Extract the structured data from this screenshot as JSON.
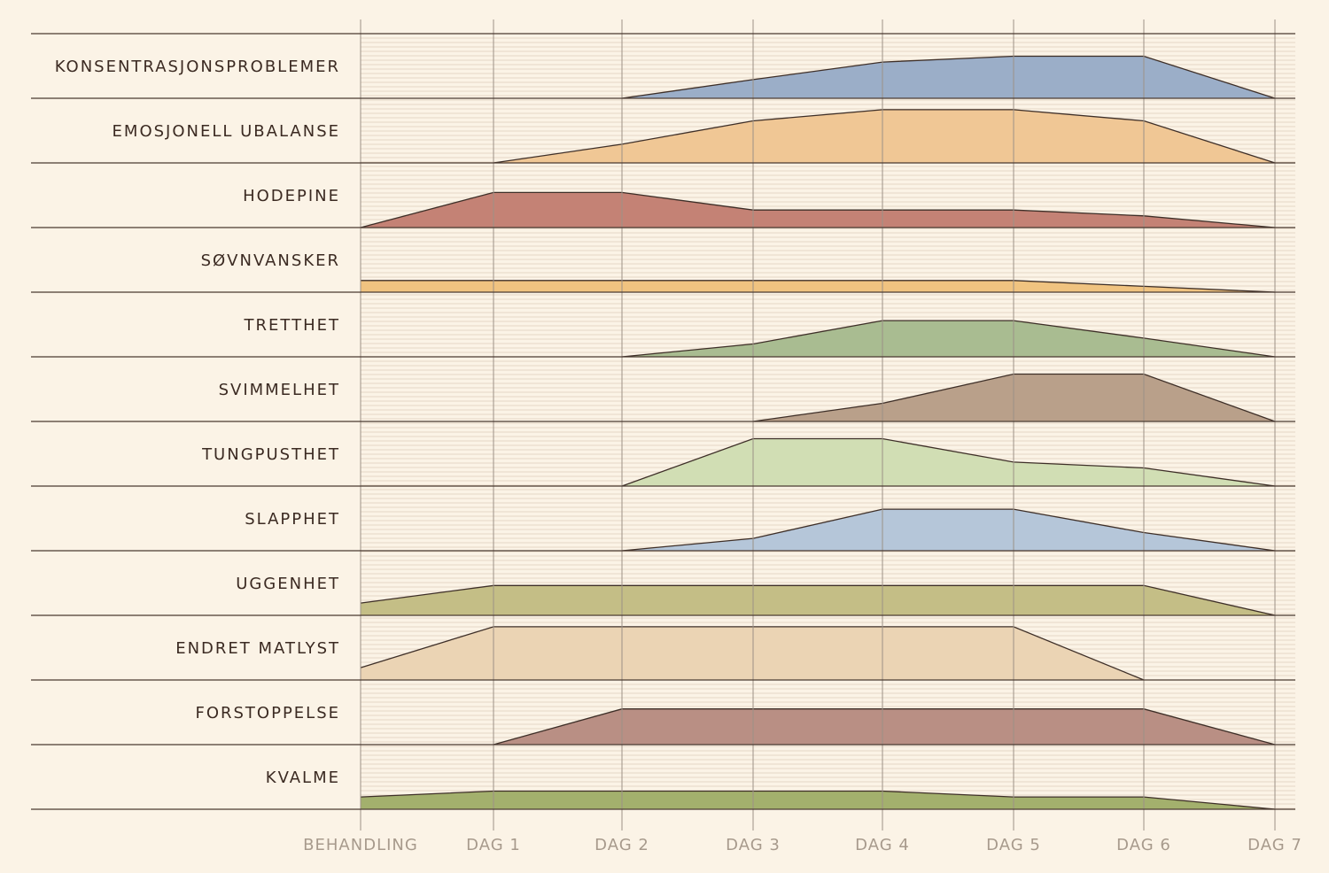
{
  "chart_data": {
    "type": "area",
    "x_categories": [
      "BEHANDLING",
      "DAG 1",
      "DAG 2",
      "DAG 3",
      "DAG 4",
      "DAG 5",
      "DAG 6",
      "DAG 7"
    ],
    "y_range": [
      0,
      1
    ],
    "grid": true,
    "series": [
      {
        "name": "KONSENTRASJONSPROBLEMER",
        "color": "#9baec8",
        "values": [
          null,
          null,
          0,
          0.32,
          0.62,
          0.72,
          0.72,
          0
        ]
      },
      {
        "name": "EMOSJONELL UBALANSE",
        "color": "#f0c795",
        "values": [
          null,
          0,
          0.32,
          0.72,
          0.91,
          0.91,
          0.72,
          0
        ]
      },
      {
        "name": "HODEPINE",
        "color": "#c48275",
        "values": [
          0,
          0.6,
          0.6,
          0.3,
          0.3,
          0.3,
          0.2,
          0
        ]
      },
      {
        "name": "SØVNVANSKER",
        "color": "#f0c380",
        "values": [
          0.2,
          0.2,
          0.2,
          0.2,
          0.2,
          0.2,
          0.1,
          0
        ]
      },
      {
        "name": "TRETTHET",
        "color": "#a9bc91",
        "values": [
          null,
          null,
          0,
          0.22,
          0.62,
          0.62,
          0.32,
          0
        ]
      },
      {
        "name": "SVIMMELHET",
        "color": "#b9a08a",
        "values": [
          null,
          null,
          null,
          0,
          0.31,
          0.81,
          0.81,
          0
        ]
      },
      {
        "name": "TUNGPUSTHET",
        "color": "#d1deb4",
        "values": [
          null,
          null,
          0,
          0.81,
          0.81,
          0.41,
          0.31,
          0
        ]
      },
      {
        "name": "SLAPPHET",
        "color": "#b5c6d9",
        "values": [
          null,
          null,
          0,
          0.21,
          0.71,
          0.71,
          0.31,
          0
        ]
      },
      {
        "name": "UGGENHET",
        "color": "#c4be86",
        "values": [
          0.21,
          0.51,
          0.51,
          0.51,
          0.51,
          0.51,
          0.51,
          0
        ]
      },
      {
        "name": "ENDRET MATLYST",
        "color": "#ebd4b4",
        "values": [
          0.21,
          0.91,
          0.91,
          0.91,
          0.91,
          0.91,
          0,
          null
        ]
      },
      {
        "name": "FORSTOPPELSE",
        "color": "#b98f84",
        "values": [
          null,
          0,
          0.61,
          0.61,
          0.61,
          0.61,
          0.61,
          0
        ]
      },
      {
        "name": "KVALME",
        "color": "#a3b06d",
        "values": [
          0.21,
          0.31,
          0.31,
          0.31,
          0.31,
          0.21,
          0.21,
          0
        ]
      }
    ]
  }
}
